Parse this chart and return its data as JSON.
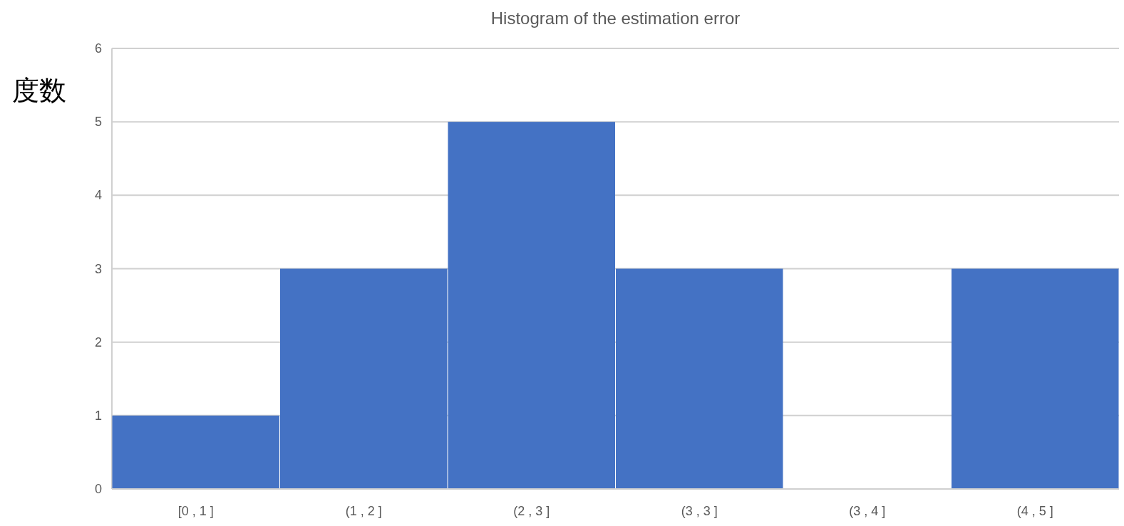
{
  "chart_data": {
    "type": "bar",
    "title": "Histogram of the estimation error",
    "ylabel": "度数",
    "categories": [
      "[0 , 1 ]",
      "(1 , 2 ]",
      "(2 , 3 ]",
      "(3 , 3 ]",
      "(3 , 4 ]",
      "(4 , 5 ]"
    ],
    "values": [
      1,
      3,
      5,
      3,
      0,
      3
    ],
    "color": "#4472c4",
    "ylim": [
      0,
      6
    ],
    "yticks": [
      0,
      1,
      2,
      3,
      4,
      5,
      6
    ],
    "grid": "y"
  }
}
